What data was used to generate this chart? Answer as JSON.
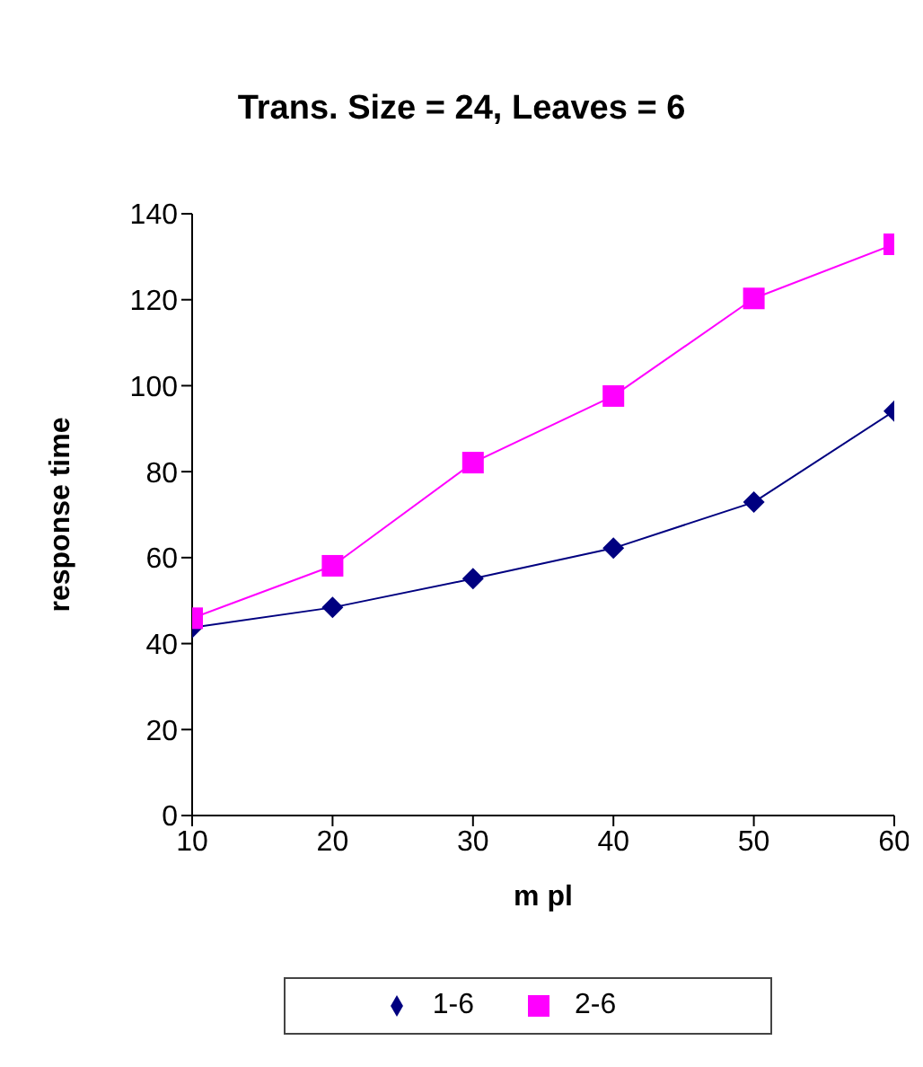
{
  "chart_data": {
    "type": "line",
    "title": "Trans. Size = 24, Leaves = 6",
    "xlabel": "m pl",
    "ylabel": "response  time",
    "x": [
      10,
      20,
      30,
      40,
      50,
      60
    ],
    "series": [
      {
        "name": "1-6",
        "color": "#000080",
        "marker": "diamond",
        "values": [
          43.7,
          48.4,
          55.1,
          62.2,
          72.9,
          94.1
        ]
      },
      {
        "name": "2-6",
        "color": "#ff00ff",
        "marker": "square",
        "values": [
          45.9,
          58.1,
          82.1,
          97.6,
          120.3,
          132.9
        ]
      }
    ],
    "xlim": [
      10,
      60
    ],
    "xticks": [
      10,
      20,
      30,
      40,
      50,
      60
    ],
    "ylim": [
      0,
      140
    ],
    "yticks": [
      0,
      20,
      40,
      60,
      80,
      100,
      120,
      140
    ],
    "grid": false,
    "legend": "bottom"
  }
}
